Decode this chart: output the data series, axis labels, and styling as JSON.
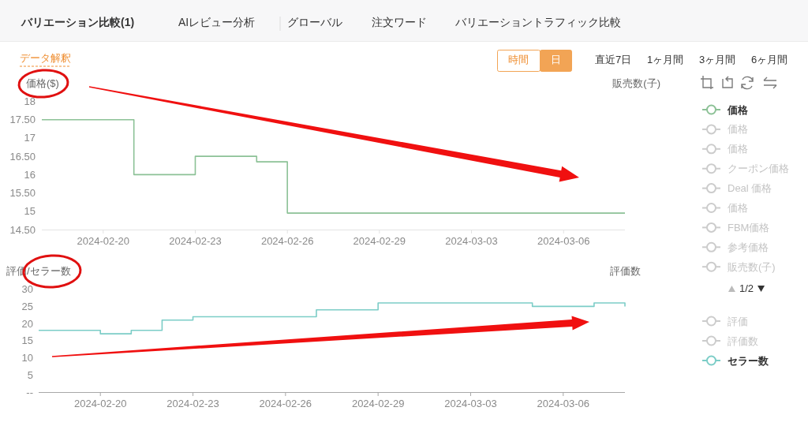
{
  "chart_data": [
    {
      "type": "step",
      "x": [
        "2024-02-18",
        "2024-02-21",
        "2024-02-23",
        "2024-02-25",
        "2024-02-26",
        "2024-03-08"
      ],
      "xlim": [
        "2024-02-18",
        "2024-03-08"
      ],
      "xticks": [
        "2024-02-20",
        "2024-02-23",
        "2024-02-26",
        "2024-02-29",
        "2024-03-03",
        "2024-03-06"
      ],
      "ylim": [
        14.5,
        18
      ],
      "yticks": [
        {
          "value": 14.5,
          "label": "14.50"
        },
        15,
        {
          "value": 15.5,
          "label": "15.50"
        },
        16,
        {
          "value": 16.5,
          "label": "16.50"
        },
        17,
        {
          "value": 17.5,
          "label": "17.50"
        },
        18
      ],
      "ylabel": "価格($)",
      "y2label": "販売数(子)",
      "legend": "right",
      "series": [
        {
          "name": "価格",
          "color": "#8cc196",
          "values": [
            17.5,
            16,
            16.5,
            16.35,
            14.95,
            14.95
          ]
        },
        {
          "name": "価格",
          "color": "#cccccc",
          "values": [
            null,
            null,
            null,
            null,
            null,
            null
          ]
        },
        {
          "name": "価格",
          "color": "#cccccc",
          "values": [
            null,
            null,
            null,
            null,
            null,
            null
          ]
        },
        {
          "name": "クーポン価格",
          "color": "#cccccc",
          "values": [
            null,
            null,
            null,
            null,
            null,
            null
          ]
        },
        {
          "name": "Deal 価格",
          "color": "#cccccc",
          "values": [
            null,
            null,
            null,
            null,
            null,
            null
          ]
        },
        {
          "name": "価格",
          "color": "#cccccc",
          "values": [
            null,
            null,
            null,
            null,
            null,
            null
          ]
        },
        {
          "name": "FBM価格",
          "color": "#cccccc",
          "values": [
            null,
            null,
            null,
            null,
            null,
            null
          ]
        },
        {
          "name": "参考価格",
          "color": "#cccccc",
          "values": [
            null,
            null,
            null,
            null,
            null,
            null
          ]
        },
        {
          "name": "販売数(子)",
          "color": "#cccccc",
          "values": [
            null,
            null,
            null,
            null,
            null,
            null
          ]
        }
      ],
      "annotations": [
        "バリエーション比較(1)",
        "AIレビュー分析",
        "グローバル",
        "注文ワード",
        "バリエーショントラフィック比較",
        "データ解釈",
        "時間",
        "日",
        "直近7日",
        "1ヶ月間",
        "3ヶ月間",
        "6ヶ月間",
        "1/2"
      ]
    },
    {
      "type": "step",
      "x": [
        "2024-02-18",
        "2024-02-20",
        "2024-02-21",
        "2024-02-22",
        "2024-02-23",
        "2024-02-27",
        "2024-02-29",
        "2024-03-05",
        "2024-03-07",
        "2024-03-08"
      ],
      "xlim": [
        "2024-02-18",
        "2024-03-08"
      ],
      "xticks": [
        "2024-02-20",
        "2024-02-23",
        "2024-02-26",
        "2024-02-29",
        "2024-03-03",
        "2024-03-06"
      ],
      "ylim": [
        0,
        30
      ],
      "yticks": [
        {
          "value": 0,
          "label": "--"
        },
        5,
        10,
        15,
        20,
        25,
        30
      ],
      "ylabel": "評価/セラー数",
      "y2label": "評価数",
      "legend": "right",
      "series": [
        {
          "name": "評価",
          "color": "#cccccc",
          "values": [
            null,
            null,
            null,
            null,
            null,
            null,
            null,
            null,
            null,
            null
          ]
        },
        {
          "name": "評価数",
          "color": "#cccccc",
          "values": [
            null,
            null,
            null,
            null,
            null,
            null,
            null,
            null,
            null,
            null
          ]
        },
        {
          "name": "セラー数",
          "color": "#7ccdc7",
          "values": [
            18,
            17,
            18,
            21,
            22,
            24,
            26,
            25,
            26,
            25
          ]
        }
      ]
    }
  ]
}
